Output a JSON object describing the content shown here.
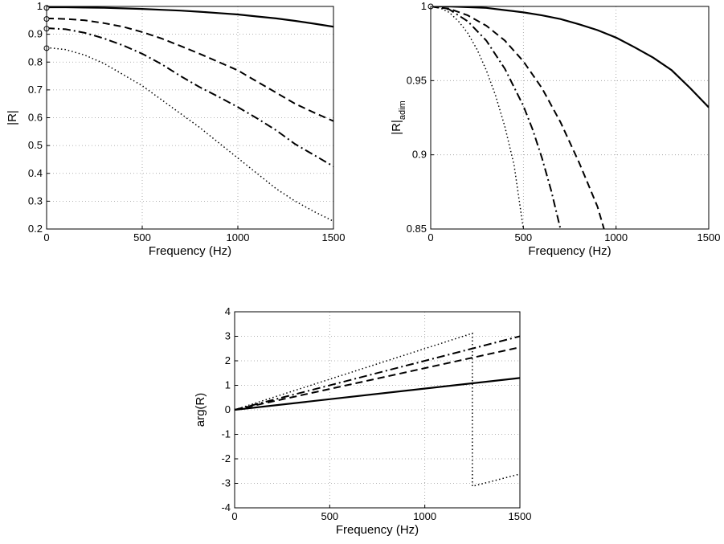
{
  "chart_data": [
    {
      "type": "line",
      "xlabel": "Frequency (Hz)",
      "ylabel": "|R|",
      "xlim": [
        0,
        1500
      ],
      "ylim": [
        0.2,
        1
      ],
      "xticks": [
        "0",
        "500",
        "1000",
        "1500"
      ],
      "yticks": [
        "0.2",
        "0.3",
        "0.4",
        "0.5",
        "0.6",
        "0.7",
        "0.8",
        "0.9",
        "1"
      ],
      "grid": true,
      "markers_at_x0": [
        0.995,
        0.955,
        0.92,
        0.85
      ],
      "series": [
        {
          "style": "solid",
          "x": [
            0,
            100,
            200,
            300,
            400,
            500,
            600,
            700,
            800,
            900,
            1000,
            1100,
            1200,
            1300,
            1400,
            1500
          ],
          "y": [
            0.997,
            0.997,
            0.996,
            0.995,
            0.993,
            0.991,
            0.988,
            0.985,
            0.981,
            0.976,
            0.971,
            0.964,
            0.957,
            0.948,
            0.938,
            0.927
          ]
        },
        {
          "style": "dashed",
          "x": [
            0,
            100,
            200,
            300,
            400,
            500,
            600,
            700,
            800,
            900,
            1000,
            1100,
            1200,
            1300,
            1400,
            1500
          ],
          "y": [
            0.957,
            0.955,
            0.95,
            0.94,
            0.927,
            0.908,
            0.885,
            0.858,
            0.83,
            0.8,
            0.77,
            0.73,
            0.69,
            0.65,
            0.618,
            0.588
          ]
        },
        {
          "style": "dashdot",
          "x": [
            0,
            100,
            200,
            300,
            400,
            500,
            600,
            700,
            800,
            900,
            1000,
            1100,
            1200,
            1300,
            1400,
            1500
          ],
          "y": [
            0.922,
            0.918,
            0.905,
            0.885,
            0.86,
            0.83,
            0.793,
            0.75,
            0.71,
            0.675,
            0.638,
            0.598,
            0.555,
            0.505,
            0.465,
            0.425
          ]
        },
        {
          "style": "dotted",
          "x": [
            0,
            100,
            200,
            300,
            400,
            500,
            600,
            700,
            800,
            900,
            1000,
            1100,
            1200,
            1300,
            1400,
            1500
          ],
          "y": [
            0.852,
            0.845,
            0.825,
            0.795,
            0.755,
            0.715,
            0.665,
            0.615,
            0.565,
            0.51,
            0.455,
            0.4,
            0.345,
            0.3,
            0.262,
            0.228
          ]
        }
      ]
    },
    {
      "type": "line",
      "xlabel": "Frequency (Hz)",
      "ylabel": "|R|",
      "ylabel_sub": "adim",
      "xlim": [
        0,
        1500
      ],
      "ylim": [
        0.85,
        1
      ],
      "xticks": [
        "0",
        "500",
        "1000",
        "1500"
      ],
      "yticks": [
        "0.85",
        "0.9",
        "0.95",
        "1"
      ],
      "grid": true,
      "markers_at_x0": [
        1
      ],
      "series": [
        {
          "style": "solid",
          "x": [
            0,
            100,
            200,
            300,
            400,
            500,
            600,
            700,
            800,
            900,
            1000,
            1100,
            1200,
            1300,
            1400,
            1500
          ],
          "y": [
            1.0,
            1.0,
            0.9995,
            0.999,
            0.9975,
            0.996,
            0.994,
            0.9915,
            0.988,
            0.984,
            0.979,
            0.9725,
            0.9655,
            0.957,
            0.945,
            0.932
          ]
        },
        {
          "style": "dashed",
          "x": [
            0,
            100,
            200,
            300,
            400,
            500,
            600,
            700,
            800,
            850,
            900,
            935
          ],
          "y": [
            1.0,
            0.9985,
            0.994,
            0.987,
            0.977,
            0.963,
            0.945,
            0.922,
            0.895,
            0.88,
            0.865,
            0.85
          ]
        },
        {
          "style": "dashdot",
          "x": [
            0,
            100,
            200,
            300,
            400,
            500,
            550,
            600,
            650,
            700
          ],
          "y": [
            1.0,
            0.998,
            0.99,
            0.977,
            0.958,
            0.933,
            0.917,
            0.898,
            0.876,
            0.85
          ]
        },
        {
          "style": "dotted",
          "x": [
            0,
            50,
            100,
            150,
            200,
            250,
            300,
            350,
            400,
            450,
            500
          ],
          "y": [
            1.0,
            0.999,
            0.996,
            0.99,
            0.982,
            0.971,
            0.957,
            0.94,
            0.919,
            0.893,
            0.85
          ]
        }
      ]
    },
    {
      "type": "line",
      "xlabel": "Frequency (Hz)",
      "ylabel": "arg(R)",
      "xlim": [
        0,
        1500
      ],
      "ylim": [
        -4,
        4
      ],
      "xticks": [
        "0",
        "500",
        "1000",
        "1500"
      ],
      "yticks": [
        "-4",
        "-3",
        "-2",
        "-1",
        "0",
        "1",
        "2",
        "3",
        "4"
      ],
      "grid": true,
      "series": [
        {
          "style": "solid",
          "x": [
            0,
            1500
          ],
          "y": [
            0,
            1.3
          ]
        },
        {
          "style": "dashed",
          "x": [
            0,
            1500
          ],
          "y": [
            0,
            2.55
          ]
        },
        {
          "style": "dashdot",
          "x": [
            0,
            1500
          ],
          "y": [
            0,
            3.0
          ]
        },
        {
          "style": "dotted",
          "x": [
            0,
            1250,
            1250,
            1500
          ],
          "y": [
            0,
            3.12,
            -3.12,
            -2.62
          ]
        }
      ]
    }
  ]
}
